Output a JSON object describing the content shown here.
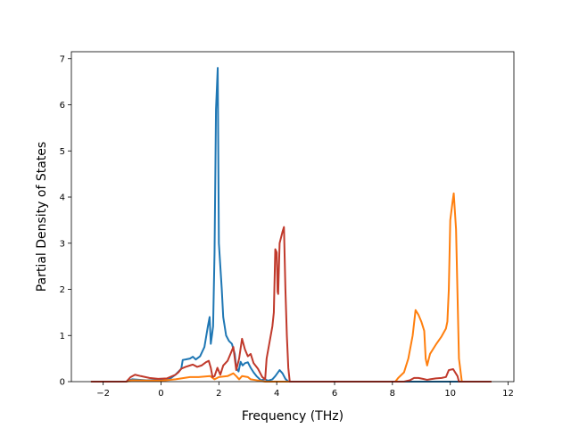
{
  "chart_data": {
    "type": "line",
    "xlabel": "Frequency (THz)",
    "ylabel": "Partial Density of States",
    "xlim": [
      -3.1,
      12.2
    ],
    "ylim": [
      0,
      7.15
    ],
    "x_ticks": [
      -2,
      0,
      2,
      4,
      6,
      8,
      10,
      12
    ],
    "x_tick_labels": [
      "−2",
      "0",
      "2",
      "4",
      "6",
      "8",
      "10",
      "12"
    ],
    "y_ticks": [
      0,
      1,
      2,
      3,
      4,
      5,
      6,
      7
    ],
    "y_tick_labels": [
      "0",
      "1",
      "2",
      "3",
      "4",
      "5",
      "6",
      "7"
    ],
    "grid": false,
    "series": [
      {
        "color": "#1f77b4",
        "points": [
          [
            -2.4,
            0
          ],
          [
            -1.2,
            0
          ],
          [
            -1.0,
            0.05
          ],
          [
            -0.5,
            0.03
          ],
          [
            0.0,
            0.04
          ],
          [
            0.3,
            0.06
          ],
          [
            0.5,
            0.15
          ],
          [
            0.7,
            0.28
          ],
          [
            0.75,
            0.47
          ],
          [
            0.85,
            0.48
          ],
          [
            1.0,
            0.5
          ],
          [
            1.1,
            0.54
          ],
          [
            1.2,
            0.48
          ],
          [
            1.35,
            0.55
          ],
          [
            1.5,
            0.75
          ],
          [
            1.62,
            1.2
          ],
          [
            1.68,
            1.4
          ],
          [
            1.72,
            0.82
          ],
          [
            1.76,
            1.0
          ],
          [
            1.8,
            1.2
          ],
          [
            1.85,
            2.8
          ],
          [
            1.9,
            5.9
          ],
          [
            1.96,
            6.8
          ],
          [
            2.0,
            3.0
          ],
          [
            2.1,
            2.0
          ],
          [
            2.15,
            1.4
          ],
          [
            2.25,
            1.0
          ],
          [
            2.35,
            0.88
          ],
          [
            2.45,
            0.82
          ],
          [
            2.55,
            0.6
          ],
          [
            2.6,
            0.3
          ],
          [
            2.68,
            0.22
          ],
          [
            2.75,
            0.43
          ],
          [
            2.82,
            0.35
          ],
          [
            2.9,
            0.4
          ],
          [
            3.0,
            0.42
          ],
          [
            3.1,
            0.3
          ],
          [
            3.2,
            0.2
          ],
          [
            3.3,
            0.12
          ],
          [
            3.45,
            0.03
          ],
          [
            3.6,
            0.05
          ],
          [
            3.7,
            0.02
          ],
          [
            3.85,
            0.05
          ],
          [
            3.95,
            0.12
          ],
          [
            4.1,
            0.25
          ],
          [
            4.2,
            0.18
          ],
          [
            4.3,
            0.06
          ],
          [
            4.4,
            0
          ],
          [
            11.4,
            0
          ]
        ]
      },
      {
        "color": "#ff7f0e",
        "points": [
          [
            -2.4,
            0
          ],
          [
            -1.2,
            0
          ],
          [
            -1.0,
            0.03
          ],
          [
            0.0,
            0.02
          ],
          [
            0.5,
            0.05
          ],
          [
            0.8,
            0.08
          ],
          [
            1.0,
            0.1
          ],
          [
            1.3,
            0.1
          ],
          [
            1.7,
            0.12
          ],
          [
            1.85,
            0.05
          ],
          [
            2.0,
            0.1
          ],
          [
            2.3,
            0.12
          ],
          [
            2.5,
            0.18
          ],
          [
            2.6,
            0.12
          ],
          [
            2.7,
            0.05
          ],
          [
            2.8,
            0.12
          ],
          [
            3.0,
            0.1
          ],
          [
            3.1,
            0.05
          ],
          [
            3.3,
            0.03
          ],
          [
            3.6,
            0
          ],
          [
            8.1,
            0
          ],
          [
            8.2,
            0.08
          ],
          [
            8.4,
            0.2
          ],
          [
            8.55,
            0.5
          ],
          [
            8.7,
            1.0
          ],
          [
            8.8,
            1.55
          ],
          [
            8.9,
            1.45
          ],
          [
            9.0,
            1.3
          ],
          [
            9.1,
            1.1
          ],
          [
            9.15,
            0.5
          ],
          [
            9.2,
            0.35
          ],
          [
            9.3,
            0.6
          ],
          [
            9.5,
            0.8
          ],
          [
            9.7,
            0.98
          ],
          [
            9.85,
            1.15
          ],
          [
            9.9,
            1.3
          ],
          [
            9.95,
            2.0
          ],
          [
            10.0,
            3.5
          ],
          [
            10.08,
            3.9
          ],
          [
            10.12,
            4.08
          ],
          [
            10.2,
            3.3
          ],
          [
            10.3,
            0.5
          ],
          [
            10.4,
            0
          ],
          [
            11.4,
            0
          ]
        ]
      },
      {
        "color": "#c0392b",
        "points": [
          [
            -2.4,
            0
          ],
          [
            -1.2,
            0
          ],
          [
            -1.05,
            0.1
          ],
          [
            -0.9,
            0.15
          ],
          [
            -0.7,
            0.12
          ],
          [
            -0.4,
            0.08
          ],
          [
            -0.1,
            0.06
          ],
          [
            0.2,
            0.07
          ],
          [
            0.5,
            0.15
          ],
          [
            0.6,
            0.2
          ],
          [
            0.7,
            0.28
          ],
          [
            0.85,
            0.32
          ],
          [
            1.0,
            0.35
          ],
          [
            1.1,
            0.37
          ],
          [
            1.25,
            0.32
          ],
          [
            1.4,
            0.35
          ],
          [
            1.55,
            0.42
          ],
          [
            1.65,
            0.45
          ],
          [
            1.72,
            0.3
          ],
          [
            1.78,
            0.1
          ],
          [
            1.85,
            0.12
          ],
          [
            1.95,
            0.3
          ],
          [
            2.05,
            0.15
          ],
          [
            2.15,
            0.35
          ],
          [
            2.3,
            0.45
          ],
          [
            2.4,
            0.6
          ],
          [
            2.5,
            0.75
          ],
          [
            2.55,
            0.5
          ],
          [
            2.6,
            0.25
          ],
          [
            2.7,
            0.5
          ],
          [
            2.8,
            0.93
          ],
          [
            2.9,
            0.7
          ],
          [
            3.0,
            0.55
          ],
          [
            3.1,
            0.6
          ],
          [
            3.2,
            0.4
          ],
          [
            3.35,
            0.28
          ],
          [
            3.5,
            0.1
          ],
          [
            3.6,
            0.05
          ],
          [
            3.65,
            0.5
          ],
          [
            3.75,
            0.85
          ],
          [
            3.85,
            1.2
          ],
          [
            3.9,
            1.5
          ],
          [
            3.95,
            2.87
          ],
          [
            4.0,
            2.8
          ],
          [
            4.03,
            1.95
          ],
          [
            4.05,
            1.9
          ],
          [
            4.1,
            3.0
          ],
          [
            4.2,
            3.25
          ],
          [
            4.25,
            3.35
          ],
          [
            4.3,
            2.0
          ],
          [
            4.35,
            1.0
          ],
          [
            4.4,
            0.3
          ],
          [
            4.45,
            0
          ],
          [
            8.4,
            0
          ],
          [
            8.6,
            0.03
          ],
          [
            8.75,
            0.08
          ],
          [
            8.9,
            0.08
          ],
          [
            9.05,
            0.06
          ],
          [
            9.2,
            0.04
          ],
          [
            9.3,
            0.05
          ],
          [
            9.5,
            0.07
          ],
          [
            9.7,
            0.08
          ],
          [
            9.85,
            0.1
          ],
          [
            9.95,
            0.25
          ],
          [
            10.1,
            0.27
          ],
          [
            10.25,
            0.12
          ],
          [
            10.3,
            0
          ],
          [
            11.4,
            0
          ]
        ]
      }
    ]
  }
}
